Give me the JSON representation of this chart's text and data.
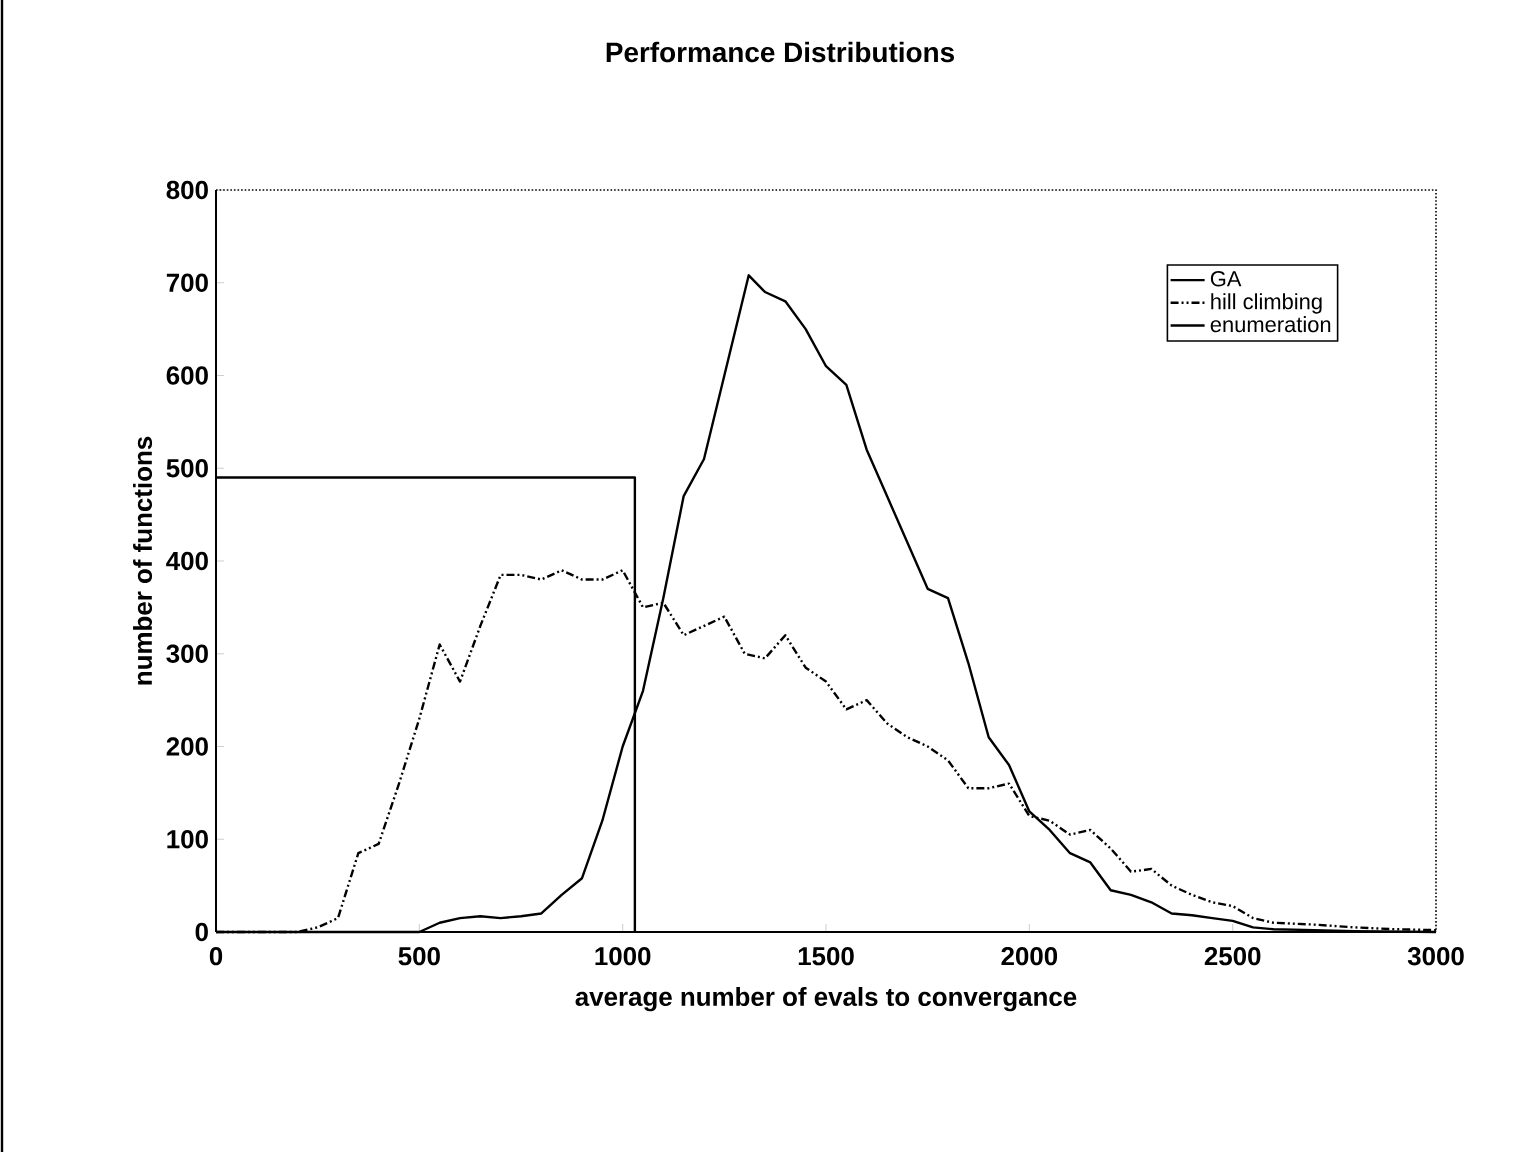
{
  "chart_data": {
    "type": "line",
    "title": "Performance Distributions",
    "xlabel": "average number of evals to convergance",
    "ylabel": "number of functions",
    "xlim": [
      0,
      3000
    ],
    "xticks": [
      0,
      500,
      1000,
      1500,
      2000,
      2500,
      3000
    ],
    "ylim": [
      0,
      800
    ],
    "yticks": [
      0,
      100,
      200,
      300,
      400,
      500,
      600,
      700,
      800
    ],
    "grid": false,
    "legend": "top right",
    "marker": "none",
    "series": [
      {
        "name": "GA",
        "color": "#000000",
        "line_style": "solid",
        "x": [
          0,
          500,
          550,
          600,
          650,
          700,
          750,
          800,
          850,
          900,
          950,
          1000,
          1050,
          1100,
          1150,
          1200,
          1250,
          1310,
          1350,
          1400,
          1450,
          1500,
          1550,
          1600,
          1650,
          1700,
          1750,
          1800,
          1850,
          1900,
          1950,
          2000,
          2050,
          2100,
          2150,
          2200,
          2250,
          2300,
          2350,
          2400,
          2450,
          2500,
          2550,
          2600,
          2700,
          2800,
          3000
        ],
        "values": [
          0,
          0,
          10,
          15,
          17,
          15,
          17,
          20,
          40,
          58,
          120,
          200,
          260,
          360,
          470,
          510,
          600,
          708,
          690,
          680,
          650,
          610,
          590,
          520,
          470,
          420,
          370,
          360,
          290,
          210,
          180,
          130,
          110,
          85,
          75,
          45,
          40,
          32,
          20,
          18,
          15,
          12,
          5,
          3,
          2,
          1,
          0
        ]
      },
      {
        "name": "hill climbing",
        "color": "#000000",
        "line_style": "dashed",
        "x": [
          0,
          200,
          250,
          300,
          350,
          400,
          450,
          500,
          550,
          600,
          650,
          700,
          750,
          800,
          850,
          900,
          950,
          1000,
          1050,
          1100,
          1150,
          1200,
          1250,
          1300,
          1350,
          1400,
          1450,
          1500,
          1550,
          1600,
          1650,
          1700,
          1750,
          1800,
          1850,
          1900,
          1950,
          2000,
          2050,
          2100,
          2150,
          2200,
          2250,
          2300,
          2350,
          2400,
          2450,
          2500,
          2550,
          2600,
          2700,
          2800,
          2900,
          3000
        ],
        "values": [
          0,
          0,
          5,
          15,
          85,
          95,
          160,
          230,
          310,
          270,
          330,
          385,
          385,
          380,
          390,
          380,
          380,
          390,
          350,
          355,
          320,
          330,
          340,
          300,
          295,
          320,
          285,
          270,
          240,
          250,
          225,
          210,
          200,
          185,
          155,
          155,
          160,
          125,
          120,
          105,
          110,
          90,
          65,
          68,
          50,
          40,
          32,
          28,
          15,
          10,
          8,
          5,
          3,
          2
        ]
      },
      {
        "name": "enumeration",
        "color": "#000000",
        "line_style": "solid",
        "x": [
          0,
          1030,
          1030
        ],
        "values": [
          490,
          490,
          0
        ]
      }
    ]
  }
}
